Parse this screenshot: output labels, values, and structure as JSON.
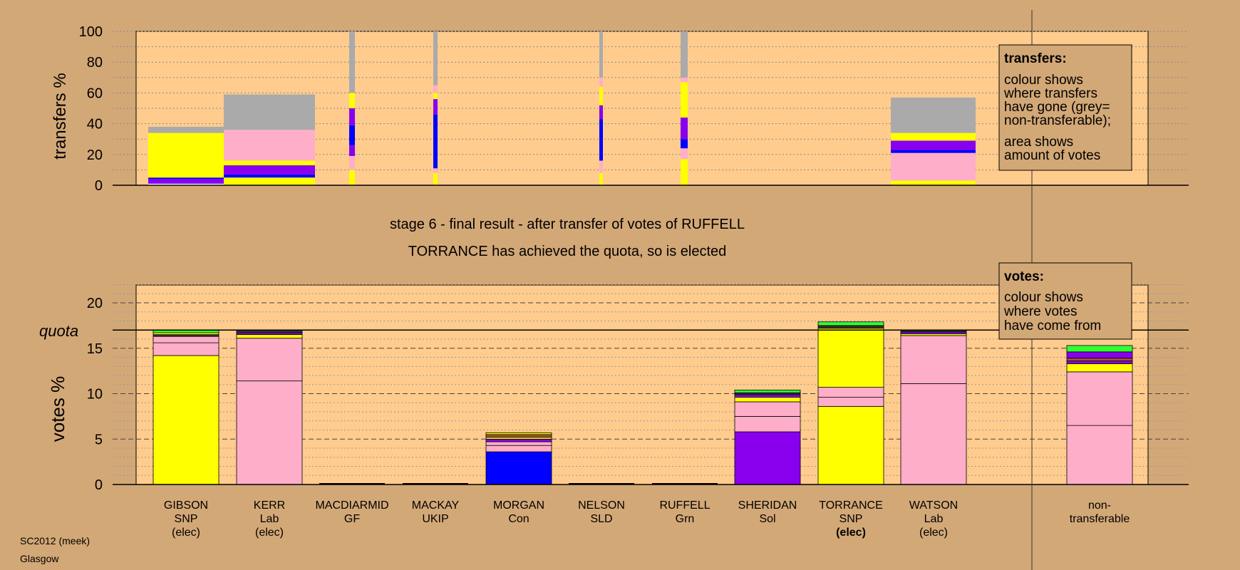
{
  "footer": {
    "line1": "SC2012 (meek)",
    "line2": "Glasgow"
  },
  "chart_data": [
    {
      "type": "bar",
      "role": "transfers",
      "ylabel": "transfers %",
      "ylim": [
        0,
        100
      ],
      "yticks": [
        0,
        20,
        40,
        60,
        80,
        100
      ],
      "grid": "dotted",
      "legend_box": {
        "title": "transfers:",
        "lines": [
          "colour shows",
          "where transfers",
          "have gone (grey=",
          "non-transferable);"
        ],
        "lines2": [
          "area shows",
          "amount of votes"
        ]
      },
      "note": "bar width is proportional to amount of votes transferred",
      "bars": [
        {
          "category": "GIBSON",
          "segments": [
            {
              "from": 0,
              "to": 1,
              "color": "#ffffff"
            },
            {
              "from": 1,
              "to": 4,
              "color": "#8800ee"
            },
            {
              "from": 4,
              "to": 5,
              "color": "#0000ff"
            },
            {
              "from": 5,
              "to": 34,
              "color": "#ffff00"
            },
            {
              "from": 34,
              "to": 38,
              "color": "#aaaaaa"
            }
          ]
        },
        {
          "category": "KERR",
          "segments": [
            {
              "from": 0,
              "to": 5,
              "color": "#ffff00"
            },
            {
              "from": 5,
              "to": 7,
              "color": "#0000ff"
            },
            {
              "from": 7,
              "to": 13,
              "color": "#8800ee"
            },
            {
              "from": 13,
              "to": 16,
              "color": "#ffff00"
            },
            {
              "from": 16,
              "to": 36,
              "color": "#ffaec9"
            },
            {
              "from": 36,
              "to": 59,
              "color": "#aaaaaa"
            }
          ]
        },
        {
          "category": "MACDIARMID",
          "segments": [
            {
              "from": 0,
              "to": 10,
              "color": "#ffff00"
            },
            {
              "from": 10,
              "to": 19,
              "color": "#ffaec9"
            },
            {
              "from": 19,
              "to": 26,
              "color": "#8800ee"
            },
            {
              "from": 26,
              "to": 39,
              "color": "#0000ff"
            },
            {
              "from": 39,
              "to": 50,
              "color": "#8800ee"
            },
            {
              "from": 50,
              "to": 60,
              "color": "#ffff00"
            },
            {
              "from": 60,
              "to": 100,
              "color": "#aaaaaa"
            }
          ]
        },
        {
          "category": "MACKAY",
          "segments": [
            {
              "from": 0,
              "to": 8,
              "color": "#ffff00"
            },
            {
              "from": 8,
              "to": 11,
              "color": "#ffaec9"
            },
            {
              "from": 11,
              "to": 46,
              "color": "#0000ff"
            },
            {
              "from": 46,
              "to": 56,
              "color": "#8800ee"
            },
            {
              "from": 56,
              "to": 60,
              "color": "#ffff00"
            },
            {
              "from": 60,
              "to": 65,
              "color": "#ffaec9"
            },
            {
              "from": 65,
              "to": 100,
              "color": "#aaaaaa"
            }
          ]
        },
        {
          "category": "MORGAN",
          "segments": []
        },
        {
          "category": "NELSON",
          "segments": [
            {
              "from": 0,
              "to": 8,
              "color": "#ffff00"
            },
            {
              "from": 8,
              "to": 16,
              "color": "#ffaec9"
            },
            {
              "from": 16,
              "to": 43,
              "color": "#0000ff"
            },
            {
              "from": 43,
              "to": 52,
              "color": "#8800ee"
            },
            {
              "from": 52,
              "to": 64,
              "color": "#ffff00"
            },
            {
              "from": 64,
              "to": 70,
              "color": "#ffaec9"
            },
            {
              "from": 70,
              "to": 100,
              "color": "#aaaaaa"
            }
          ]
        },
        {
          "category": "RUFFELL",
          "segments": [
            {
              "from": 0,
              "to": 17,
              "color": "#ffff00"
            },
            {
              "from": 17,
              "to": 24,
              "color": "#ffaec9"
            },
            {
              "from": 24,
              "to": 30,
              "color": "#0000ff"
            },
            {
              "from": 30,
              "to": 44,
              "color": "#8800ee"
            },
            {
              "from": 44,
              "to": 67,
              "color": "#ffff00"
            },
            {
              "from": 67,
              "to": 70,
              "color": "#ffaec9"
            },
            {
              "from": 70,
              "to": 100,
              "color": "#aaaaaa"
            }
          ]
        },
        {
          "category": "SHERIDAN",
          "segments": []
        },
        {
          "category": "TORRANCE",
          "segments": []
        },
        {
          "category": "WATSON",
          "segments": [
            {
              "from": 0,
              "to": 3,
              "color": "#ffff00"
            },
            {
              "from": 3,
              "to": 21,
              "color": "#ffaec9"
            },
            {
              "from": 21,
              "to": 23,
              "color": "#0000ff"
            },
            {
              "from": 23,
              "to": 29,
              "color": "#8800ee"
            },
            {
              "from": 29,
              "to": 34,
              "color": "#ffff00"
            },
            {
              "from": 34,
              "to": 57,
              "color": "#aaaaaa"
            }
          ]
        }
      ]
    },
    {
      "type": "bar",
      "role": "votes",
      "title": "stage 6 - final result - after transfer of votes of RUFFELL",
      "subtitle": "TORRANCE has achieved the quota, so is elected",
      "ylabel": "votes %",
      "ylim": [
        0,
        22
      ],
      "yticks": [
        0,
        5,
        10,
        15,
        20
      ],
      "quota": 17,
      "quota_label": "quota",
      "legend_box": {
        "title": "votes:",
        "lines": [
          "colour shows",
          "where votes",
          "have come from"
        ]
      },
      "categories": [
        {
          "lines": [
            "GIBSON",
            "SNP",
            "(elec)"
          ]
        },
        {
          "lines": [
            "KERR",
            "Lab",
            "(elec)"
          ]
        },
        {
          "lines": [
            "MACDIARMID",
            "GF"
          ]
        },
        {
          "lines": [
            "MACKAY",
            "UKIP"
          ]
        },
        {
          "lines": [
            "MORGAN",
            "Con"
          ]
        },
        {
          "lines": [
            "NELSON",
            "SLD"
          ]
        },
        {
          "lines": [
            "RUFFELL",
            "Grn"
          ]
        },
        {
          "lines": [
            "SHERIDAN",
            "Sol"
          ]
        },
        {
          "lines": [
            "TORRANCE",
            "SNP",
            "(elec)"
          ],
          "bold_last": true
        },
        {
          "lines": [
            "WATSON",
            "Lab",
            "(elec)"
          ]
        },
        {
          "lines": [
            "non-",
            "transferable"
          ],
          "separate": true
        }
      ],
      "bars": [
        {
          "category": "GIBSON",
          "segments": [
            {
              "from": 0,
              "to": 14.2,
              "color": "#ffff00"
            },
            {
              "from": 14.2,
              "to": 15.6,
              "color": "#ffaec9"
            },
            {
              "from": 15.6,
              "to": 16.3,
              "color": "#ffaec9"
            },
            {
              "from": 16.3,
              "to": 16.5,
              "color": "#333333"
            },
            {
              "from": 16.5,
              "to": 16.7,
              "color": "#ffff00"
            },
            {
              "from": 16.7,
              "to": 17.0,
              "color": "#33ff33"
            }
          ]
        },
        {
          "category": "KERR",
          "segments": [
            {
              "from": 0,
              "to": 11.4,
              "color": "#ffaec9"
            },
            {
              "from": 11.4,
              "to": 16.1,
              "color": "#ffaec9"
            },
            {
              "from": 16.1,
              "to": 16.5,
              "color": "#ffff00"
            },
            {
              "from": 16.5,
              "to": 16.7,
              "color": "#8800ee"
            },
            {
              "from": 16.7,
              "to": 17.0,
              "color": "#333333"
            }
          ]
        },
        {
          "category": "MACDIARMID",
          "segments": []
        },
        {
          "category": "MACKAY",
          "segments": []
        },
        {
          "category": "MORGAN",
          "segments": [
            {
              "from": 0,
              "to": 3.6,
              "color": "#0000ff"
            },
            {
              "from": 3.6,
              "to": 4.3,
              "color": "#ffaec9"
            },
            {
              "from": 4.3,
              "to": 4.7,
              "color": "#ffaec9"
            },
            {
              "from": 4.7,
              "to": 5.0,
              "color": "#8800ee"
            },
            {
              "from": 5.0,
              "to": 5.2,
              "color": "#ffff00"
            },
            {
              "from": 5.2,
              "to": 5.5,
              "color": "#aa5533"
            },
            {
              "from": 5.5,
              "to": 5.7,
              "color": "#ffff00"
            }
          ]
        },
        {
          "category": "NELSON",
          "segments": []
        },
        {
          "category": "RUFFELL",
          "segments": []
        },
        {
          "category": "SHERIDAN",
          "segments": [
            {
              "from": 0,
              "to": 5.8,
              "color": "#8800ee"
            },
            {
              "from": 5.8,
              "to": 7.5,
              "color": "#ffaec9"
            },
            {
              "from": 7.5,
              "to": 9.1,
              "color": "#ffaec9"
            },
            {
              "from": 9.1,
              "to": 9.6,
              "color": "#ffff00"
            },
            {
              "from": 9.6,
              "to": 9.9,
              "color": "#8800ee"
            },
            {
              "from": 9.9,
              "to": 10.1,
              "color": "#333333"
            },
            {
              "from": 10.1,
              "to": 10.4,
              "color": "#33ff33"
            }
          ]
        },
        {
          "category": "TORRANCE",
          "segments": [
            {
              "from": 0,
              "to": 8.6,
              "color": "#ffff00"
            },
            {
              "from": 8.6,
              "to": 9.6,
              "color": "#ffaec9"
            },
            {
              "from": 9.6,
              "to": 10.7,
              "color": "#ffaec9"
            },
            {
              "from": 10.7,
              "to": 17.2,
              "color": "#ffff00"
            },
            {
              "from": 17.2,
              "to": 17.5,
              "color": "#333333"
            },
            {
              "from": 17.5,
              "to": 17.9,
              "color": "#33ff33"
            }
          ]
        },
        {
          "category": "WATSON",
          "segments": [
            {
              "from": 0,
              "to": 11.1,
              "color": "#ffaec9"
            },
            {
              "from": 11.1,
              "to": 16.4,
              "color": "#ffaec9"
            },
            {
              "from": 16.4,
              "to": 16.6,
              "color": "#ffff00"
            },
            {
              "from": 16.6,
              "to": 16.8,
              "color": "#8800ee"
            },
            {
              "from": 16.8,
              "to": 17.0,
              "color": "#333333"
            }
          ]
        },
        {
          "category": "non-transferable",
          "segments": [
            {
              "from": 0,
              "to": 6.5,
              "color": "#ffaec9"
            },
            {
              "from": 6.5,
              "to": 12.4,
              "color": "#ffaec9"
            },
            {
              "from": 12.4,
              "to": 13.3,
              "color": "#ffff00"
            },
            {
              "from": 13.3,
              "to": 13.6,
              "color": "#8800ee"
            },
            {
              "from": 13.6,
              "to": 13.9,
              "color": "#aa5533"
            },
            {
              "from": 13.9,
              "to": 14.6,
              "color": "#8800ee"
            },
            {
              "from": 14.6,
              "to": 15.3,
              "color": "#33ff33"
            }
          ]
        }
      ]
    }
  ]
}
